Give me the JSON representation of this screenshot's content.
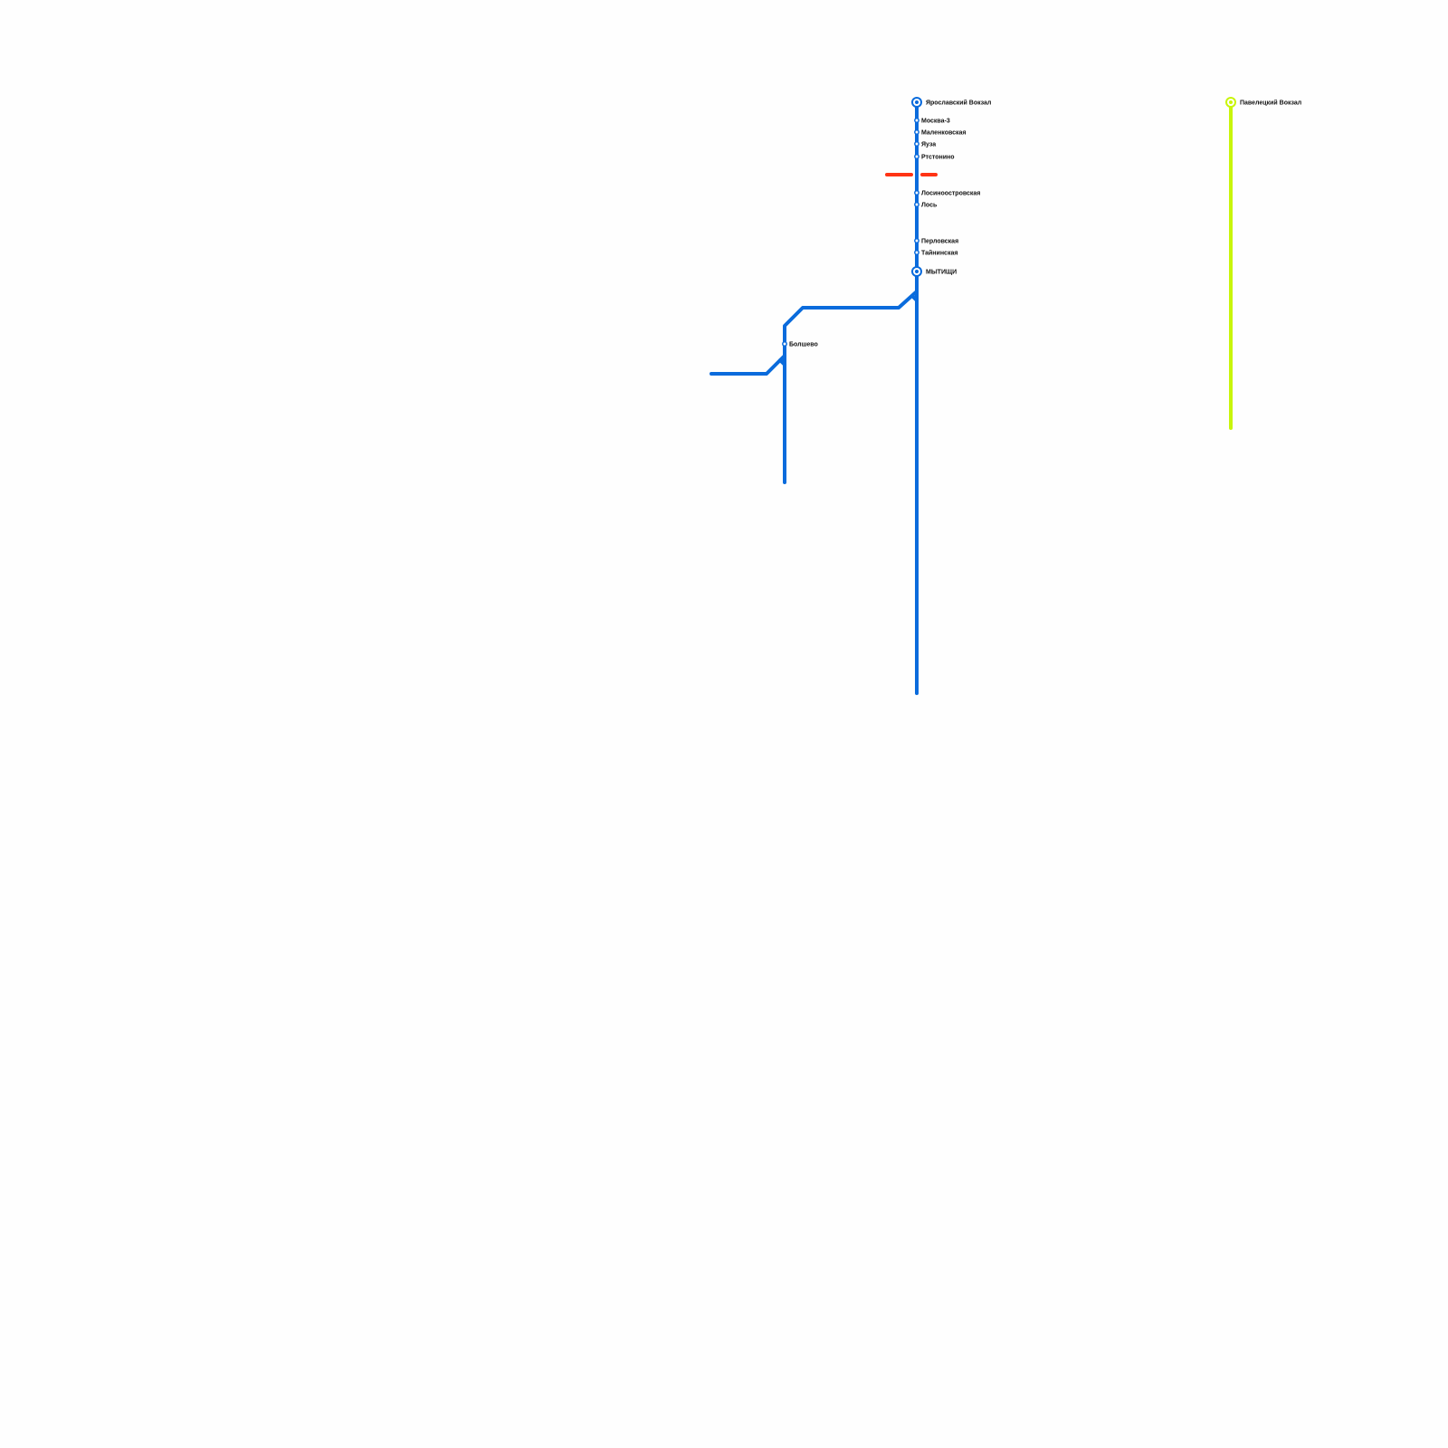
{
  "colors": {
    "blue_line": "#0a6bdc",
    "red_line": "#ff3314",
    "yellow_line": "#c8f50a",
    "background": "#fefefe"
  },
  "lines": [
    {
      "id": "blue",
      "color": "#0a6bdc"
    },
    {
      "id": "red",
      "color": "#ff3314"
    },
    {
      "id": "yellow",
      "color": "#c8f50a"
    }
  ],
  "stations": [
    {
      "name": "Ярославский Вокзал",
      "line": "blue",
      "interchange": true
    },
    {
      "name": "Москва-3",
      "line": "blue",
      "interchange": false
    },
    {
      "name": "Маленковская",
      "line": "blue",
      "interchange": false
    },
    {
      "name": "Яуза",
      "line": "blue",
      "interchange": false
    },
    {
      "name": "Ртстонино",
      "line": "blue",
      "interchange": false
    },
    {
      "name": "Лосиноостровская",
      "line": "blue",
      "interchange": false
    },
    {
      "name": "Лось",
      "line": "blue",
      "interchange": false
    },
    {
      "name": "Перловская",
      "line": "blue",
      "interchange": false
    },
    {
      "name": "Тайнинская",
      "line": "blue",
      "interchange": false
    },
    {
      "name": "МЫТИЩИ",
      "line": "blue",
      "interchange": true
    },
    {
      "name": "Болшево",
      "line": "blue",
      "interchange": false
    },
    {
      "name": "Павелецкий Вокзал",
      "line": "yellow",
      "interchange": true
    }
  ]
}
